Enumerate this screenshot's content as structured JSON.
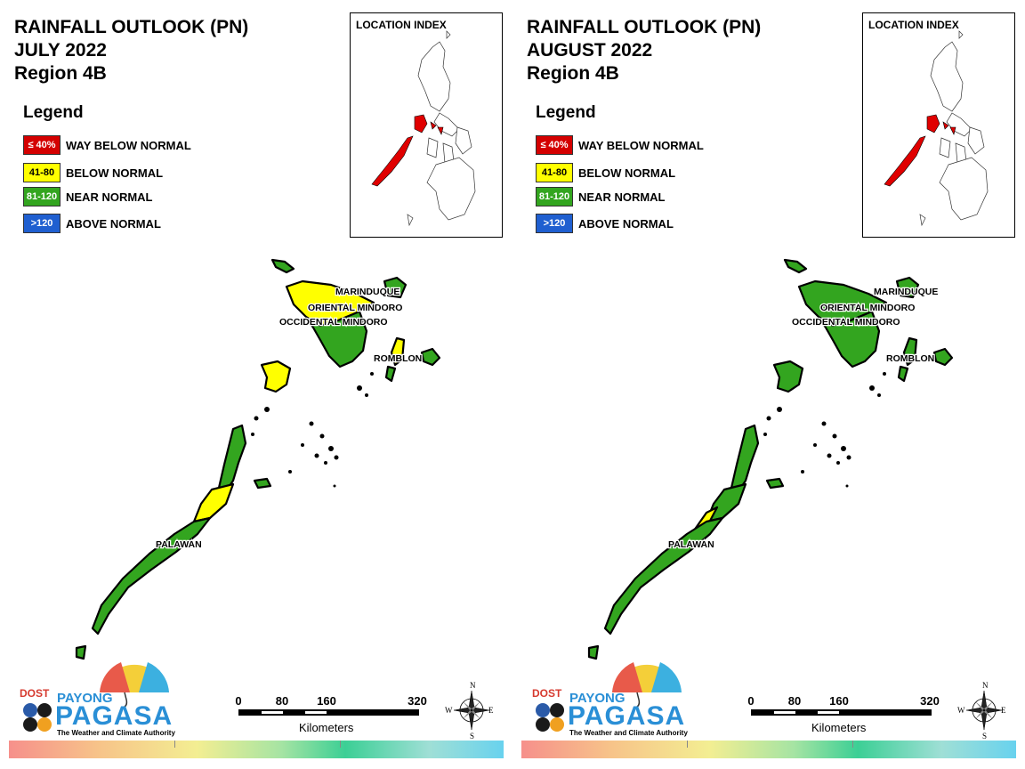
{
  "colors": {
    "way_below": "#d40000",
    "below": "#ffff00",
    "near": "#33a51f",
    "above": "#1f5fd0",
    "outline": "#000000"
  },
  "legend": {
    "title": "Legend",
    "items": [
      {
        "range": "≤ 40%",
        "label": "WAY BELOW NORMAL",
        "color": "#d40000",
        "text_color": "#ffffff"
      },
      {
        "range": "41-80",
        "label": "BELOW NORMAL",
        "color": "#ffff00",
        "text_color": "#000000"
      },
      {
        "range": "81-120",
        "label": "NEAR NORMAL",
        "color": "#33a51f",
        "text_color": "#ffffff"
      },
      {
        "range": ">120",
        "label": "ABOVE NORMAL",
        "color": "#1f5fd0",
        "text_color": "#ffffff"
      }
    ]
  },
  "panels": [
    {
      "title_line1": "RAINFALL OUTLOOK (PN)",
      "title_line2": "JULY 2022",
      "title_line3": "Region 4B",
      "regions": {
        "occidental_mindoro": "mixed",
        "oriental_mindoro": "mixed",
        "marinduque": "near",
        "romblon": "mixed",
        "palawan": "mixed"
      }
    },
    {
      "title_line1": "RAINFALL OUTLOOK (PN)",
      "title_line2": "AUGUST 2022",
      "title_line3": "Region 4B",
      "regions": {
        "occidental_mindoro": "near",
        "oriental_mindoro": "near",
        "marinduque": "near",
        "romblon": "near",
        "palawan": "mostly_near"
      }
    }
  ],
  "map_labels": {
    "marinduque": "MARINDUQUE",
    "oriental_mindoro": "ORIENTAL MINDORO",
    "occidental_mindoro": "OCCIDENTAL MINDORO",
    "romblon": "ROMBLON",
    "palawan": "PALAWAN"
  },
  "location_index": {
    "title": "LOCATION INDEX",
    "highlight_color": "#e00000"
  },
  "scale": {
    "ticks": [
      "0",
      "80",
      "160",
      "320"
    ],
    "unit": "Kilometers"
  },
  "compass": {
    "n": "N",
    "s": "S",
    "e": "E",
    "w": "W"
  },
  "logo": {
    "dost": "DOST",
    "payong": "PAYONG",
    "pagasa": "PAGASA",
    "tagline": "The Weather and Climate Authority"
  }
}
